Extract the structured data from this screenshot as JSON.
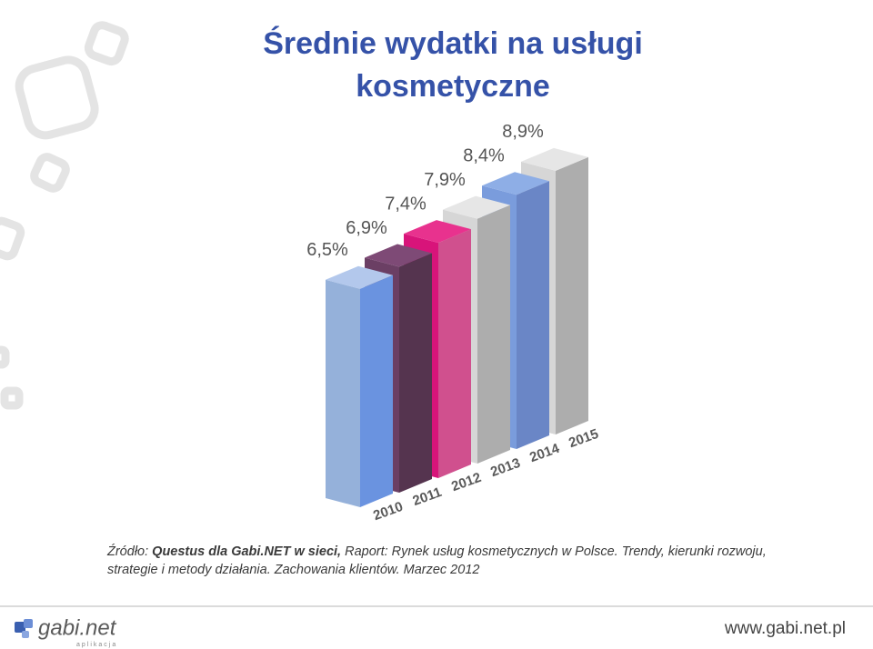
{
  "chart_data": {
    "type": "bar3d",
    "title": [
      "Średnie wydatki na usługi",
      "kosmetyczne"
    ],
    "categories": [
      "2010",
      "2011",
      "2012",
      "2013",
      "2014",
      "2015"
    ],
    "values": [
      6.5,
      6.9,
      7.4,
      7.9,
      8.4,
      8.9
    ],
    "value_labels": [
      "6,5%",
      "6,9%",
      "7,4%",
      "7,9%",
      "8,4%",
      "8,9%"
    ],
    "colors": [
      [
        "#95b1da",
        "#6a93e0",
        "#b3c8ec"
      ],
      [
        "#6b3f64",
        "#55344f",
        "#7e4a76"
      ],
      [
        "#d8147a",
        "#d0508e",
        "#e8328e"
      ],
      [
        "#d6d6d6",
        "#adadad",
        "#e6e6e6"
      ],
      [
        "#7a9cdc",
        "#6a86c6",
        "#8eaee6"
      ],
      [
        "#d6d6d6",
        "#adadad",
        "#e6e6e6"
      ]
    ]
  },
  "source": {
    "prefix": "Źródło: ",
    "bold": "Questus dla Gabi.NET w sieci,",
    "text": " Raport: Rynek usług kosmetycznych w Polsce. Trendy, kierunki rozwoju,",
    "text2": "strategie i metody działania. Zachowania klientów. Marzec 2012"
  },
  "footer": {
    "logo": "gabi.net",
    "logo_sub": "aplikacja",
    "url": "www.gabi.net.pl"
  }
}
